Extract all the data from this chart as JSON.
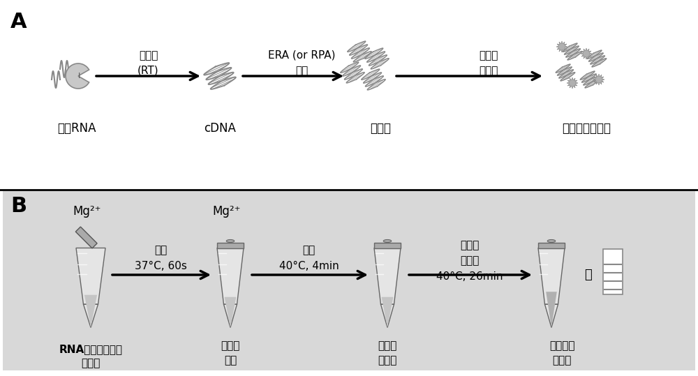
{
  "bg_color_A": "#ffffff",
  "bg_color_B": "#d8d8d8",
  "label_A": "A",
  "label_B": "B",
  "panel_A_labels": [
    "单个RNA",
    "cDNA",
    "扩增子",
    "可检测的扩增子"
  ],
  "panel_A_arrows": [
    {
      "text_line1": "逆转录",
      "text_line2": "(RT)"
    },
    {
      "text_line1": "ERA (or RPA)",
      "text_line2": "反应"
    },
    {
      "text_line1": "探针与",
      "text_line2": "核酸酶"
    }
  ],
  "panel_B_labels": [
    "RNA，酶、引物、\n探针等",
    "逆转录\n反应",
    "激活和\n预反应",
    "超灵敏现\n场检测"
  ],
  "panel_B_arrows": [
    {
      "text_line1": "盖管",
      "text_line2": "37°C, 60s"
    },
    {
      "text_line1": "离心",
      "text_line2": "40°C, 4min"
    },
    {
      "text_line1": "振荡后\n再离心",
      "text_line2": "40°C, 26min"
    }
  ],
  "mg2plus": [
    "Mg²⁺",
    "Mg²⁺"
  ],
  "or_text": "或",
  "text_color": "#1a1a1a",
  "arrow_color": "#1a1a1a",
  "tube_body_color": "#e8e8e8",
  "tube_highlight": "#f5f5f5",
  "tube_cap_color": "#b0b0b0",
  "tube_liquid_color": "#c8c8c8"
}
